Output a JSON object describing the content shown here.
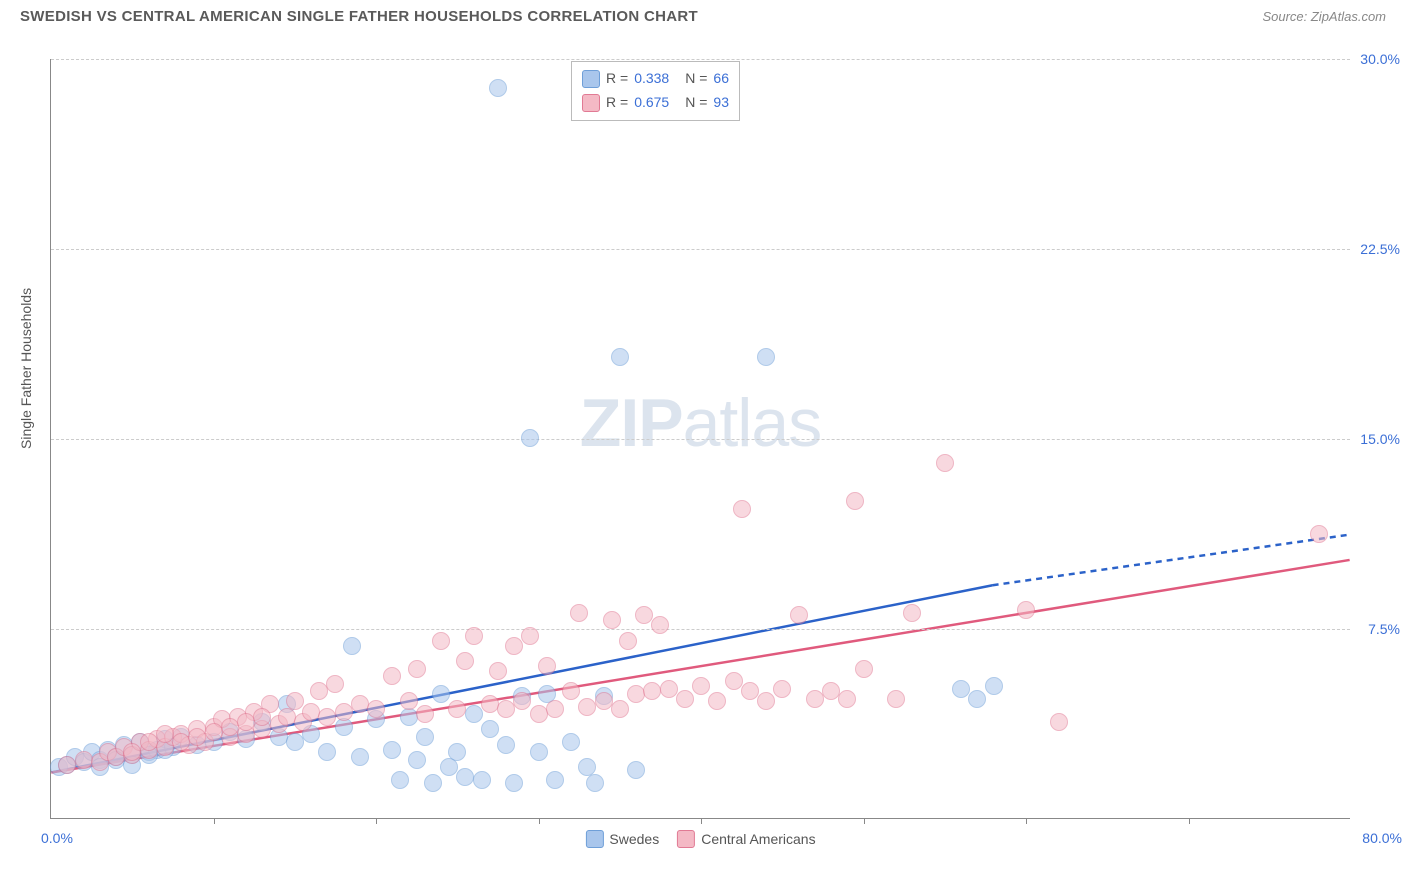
{
  "header": {
    "title": "SWEDISH VS CENTRAL AMERICAN SINGLE FATHER HOUSEHOLDS CORRELATION CHART",
    "source": "Source: ZipAtlas.com"
  },
  "yaxis": {
    "label": "Single Father Households"
  },
  "watermark": {
    "bold": "ZIP",
    "light": "atlas"
  },
  "chart": {
    "type": "scatter",
    "xlim": [
      0,
      80
    ],
    "ylim": [
      0,
      30
    ],
    "xmin_label": "0.0%",
    "xmax_label": "80.0%",
    "xticks": [
      10,
      20,
      30,
      40,
      50,
      60,
      70
    ],
    "yticks": [
      {
        "v": 7.5,
        "label": "7.5%"
      },
      {
        "v": 15.0,
        "label": "15.0%"
      },
      {
        "v": 22.5,
        "label": "22.5%"
      },
      {
        "v": 30.0,
        "label": "30.0%"
      }
    ],
    "grid_color": "#cccccc",
    "background_color": "#ffffff",
    "marker_radius": 9,
    "marker_stroke_width": 1.5,
    "series": [
      {
        "key": "swedes",
        "label": "Swedes",
        "R": "0.338",
        "N": "66",
        "fill": "#a9c6ec",
        "stroke": "#6f9fd8",
        "fill_opacity": 0.55,
        "trend": {
          "x1": 0,
          "y1": 1.8,
          "x2": 58,
          "y2": 9.2,
          "dash_x2": 80,
          "dash_y2": 11.2,
          "color": "#2b62c9",
          "width": 2.5
        },
        "points": [
          [
            0.5,
            2.0
          ],
          [
            1,
            2.1
          ],
          [
            1.5,
            2.4
          ],
          [
            2,
            2.2
          ],
          [
            2.5,
            2.6
          ],
          [
            3,
            2.3
          ],
          [
            3.5,
            2.7
          ],
          [
            4,
            2.4
          ],
          [
            4.5,
            2.9
          ],
          [
            5,
            2.5
          ],
          [
            5.5,
            3.0
          ],
          [
            6,
            2.6
          ],
          [
            6.5,
            2.7
          ],
          [
            7,
            3.1
          ],
          [
            7.5,
            2.8
          ],
          [
            8,
            3.2
          ],
          [
            9,
            2.9
          ],
          [
            10,
            3.0
          ],
          [
            11,
            3.4
          ],
          [
            12,
            3.1
          ],
          [
            13,
            3.8
          ],
          [
            14,
            3.2
          ],
          [
            14.5,
            4.5
          ],
          [
            15,
            3.0
          ],
          [
            16,
            3.3
          ],
          [
            17,
            2.6
          ],
          [
            18,
            3.6
          ],
          [
            18.5,
            6.8
          ],
          [
            19,
            2.4
          ],
          [
            20,
            3.9
          ],
          [
            21,
            2.7
          ],
          [
            21.5,
            1.5
          ],
          [
            22,
            4.0
          ],
          [
            22.5,
            2.3
          ],
          [
            23,
            3.2
          ],
          [
            23.5,
            1.4
          ],
          [
            24,
            4.9
          ],
          [
            24.5,
            2.0
          ],
          [
            25,
            2.6
          ],
          [
            25.5,
            1.6
          ],
          [
            26,
            4.1
          ],
          [
            26.5,
            1.5
          ],
          [
            27,
            3.5
          ],
          [
            28,
            2.9
          ],
          [
            28.5,
            1.4
          ],
          [
            29,
            4.8
          ],
          [
            29.5,
            15.0
          ],
          [
            30,
            2.6
          ],
          [
            30.5,
            4.9
          ],
          [
            31,
            1.5
          ],
          [
            32,
            3.0
          ],
          [
            33,
            2.0
          ],
          [
            33.5,
            1.4
          ],
          [
            34,
            4.8
          ],
          [
            35,
            18.2
          ],
          [
            36,
            1.9
          ],
          [
            27.5,
            28.8
          ],
          [
            44,
            18.2
          ],
          [
            56,
            5.1
          ],
          [
            57,
            4.7
          ],
          [
            58,
            5.2
          ],
          [
            3,
            2.0
          ],
          [
            4,
            2.3
          ],
          [
            5,
            2.1
          ],
          [
            6,
            2.5
          ],
          [
            7,
            2.7
          ]
        ]
      },
      {
        "key": "central",
        "label": "Central Americans",
        "R": "0.675",
        "N": "93",
        "fill": "#f4b9c5",
        "stroke": "#e17a94",
        "fill_opacity": 0.55,
        "trend": {
          "x1": 0,
          "y1": 1.8,
          "x2": 80,
          "y2": 10.2,
          "color": "#e05a7d",
          "width": 2.5
        },
        "points": [
          [
            1,
            2.1
          ],
          [
            2,
            2.3
          ],
          [
            3,
            2.2
          ],
          [
            3.5,
            2.6
          ],
          [
            4,
            2.4
          ],
          [
            4.5,
            2.8
          ],
          [
            5,
            2.5
          ],
          [
            5.5,
            3.0
          ],
          [
            6,
            2.7
          ],
          [
            6.5,
            3.1
          ],
          [
            7,
            2.8
          ],
          [
            7.5,
            3.2
          ],
          [
            8,
            3.3
          ],
          [
            8.5,
            2.9
          ],
          [
            9,
            3.5
          ],
          [
            9.5,
            3.0
          ],
          [
            10,
            3.6
          ],
          [
            10.5,
            3.9
          ],
          [
            11,
            3.2
          ],
          [
            11.5,
            4.0
          ],
          [
            12,
            3.3
          ],
          [
            12.5,
            4.2
          ],
          [
            13,
            3.5
          ],
          [
            13.5,
            4.5
          ],
          [
            14,
            3.7
          ],
          [
            14.5,
            4.0
          ],
          [
            15,
            4.6
          ],
          [
            15.5,
            3.8
          ],
          [
            16,
            4.2
          ],
          [
            16.5,
            5.0
          ],
          [
            17,
            4.0
          ],
          [
            17.5,
            5.3
          ],
          [
            18,
            4.2
          ],
          [
            19,
            4.5
          ],
          [
            20,
            4.3
          ],
          [
            21,
            5.6
          ],
          [
            22,
            4.6
          ],
          [
            22.5,
            5.9
          ],
          [
            23,
            4.1
          ],
          [
            24,
            7.0
          ],
          [
            25,
            4.3
          ],
          [
            25.5,
            6.2
          ],
          [
            26,
            7.2
          ],
          [
            27,
            4.5
          ],
          [
            27.5,
            5.8
          ],
          [
            28,
            4.3
          ],
          [
            28.5,
            6.8
          ],
          [
            29,
            4.6
          ],
          [
            29.5,
            7.2
          ],
          [
            30,
            4.1
          ],
          [
            30.5,
            6.0
          ],
          [
            31,
            4.3
          ],
          [
            32,
            5.0
          ],
          [
            32.5,
            8.1
          ],
          [
            33,
            4.4
          ],
          [
            34,
            4.6
          ],
          [
            34.5,
            7.8
          ],
          [
            35,
            4.3
          ],
          [
            35.5,
            7.0
          ],
          [
            36,
            4.9
          ],
          [
            36.5,
            8.0
          ],
          [
            37,
            5.0
          ],
          [
            37.5,
            7.6
          ],
          [
            38,
            5.1
          ],
          [
            39,
            4.7
          ],
          [
            40,
            5.2
          ],
          [
            41,
            4.6
          ],
          [
            42,
            5.4
          ],
          [
            42.5,
            12.2
          ],
          [
            43,
            5.0
          ],
          [
            44,
            4.6
          ],
          [
            45,
            5.1
          ],
          [
            46,
            8.0
          ],
          [
            47,
            4.7
          ],
          [
            48,
            5.0
          ],
          [
            49,
            4.7
          ],
          [
            49.5,
            12.5
          ],
          [
            50,
            5.9
          ],
          [
            52,
            4.7
          ],
          [
            53,
            8.1
          ],
          [
            55,
            14.0
          ],
          [
            60,
            8.2
          ],
          [
            62,
            3.8
          ],
          [
            78,
            11.2
          ],
          [
            5,
            2.6
          ],
          [
            6,
            3.0
          ],
          [
            7,
            3.3
          ],
          [
            8,
            3.0
          ],
          [
            9,
            3.2
          ],
          [
            10,
            3.4
          ],
          [
            11,
            3.6
          ],
          [
            12,
            3.8
          ],
          [
            13,
            4.0
          ]
        ]
      }
    ],
    "bottom_legend": [
      {
        "label": "Swedes",
        "fill": "#a9c6ec",
        "stroke": "#6f9fd8"
      },
      {
        "label": "Central Americans",
        "fill": "#f4b9c5",
        "stroke": "#e17a94"
      }
    ]
  }
}
